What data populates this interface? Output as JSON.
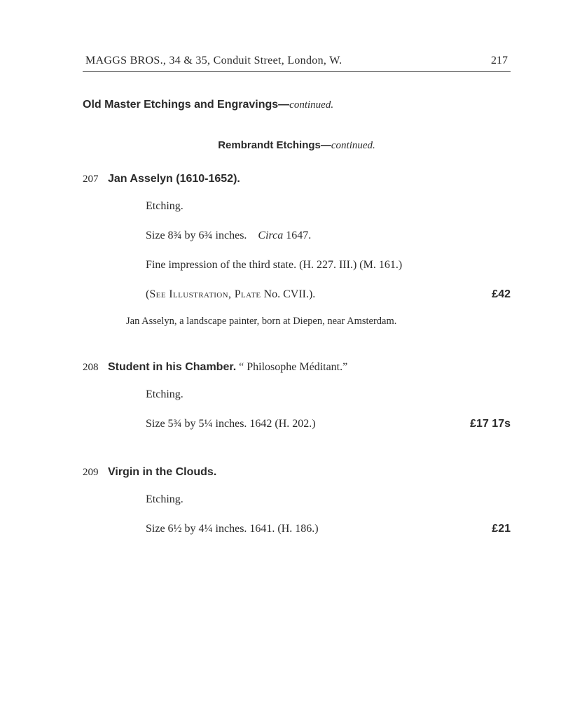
{
  "running_head": {
    "title": "MAGGS BROS., 34 & 35, Conduit Street, London, W.",
    "page_number": "217"
  },
  "section_heading": {
    "main": "Old Master Etchings and Engravings—",
    "cont": "continued."
  },
  "sub_heading": {
    "main": "Rembrandt Etchings—",
    "cont": "continued."
  },
  "entries": [
    {
      "lot": "207",
      "title": "Jan Asselyn (1610-1652).",
      "quoted": "",
      "lines": {
        "l1": "Etching.",
        "l2a": "Size 8¾ by 6¾ inches.",
        "l2b": "Circa",
        "l2c": " 1647.",
        "l3a": "Fine impression of the third state.",
        "l3b": "   (H. 227. III.)   (M. 161.)",
        "l4a": "(",
        "l4b": "See Illustration, Plate",
        "l4c": " No. CVII.).",
        "l4_price": "£42"
      },
      "note": "Jan Asselyn, a landscape painter, born at Diepen, near Amsterdam."
    },
    {
      "lot": "208",
      "title": "Student in his Chamber.",
      "quoted": "   “ Philosophe Méditant.”",
      "lines": {
        "l1": "Etching.",
        "l2": "Size 5¾ by 5¼ inches.   1642   (H. 202.)",
        "l2_price": "£17 17s"
      }
    },
    {
      "lot": "209",
      "title": "Virgin in the Clouds.",
      "quoted": "",
      "lines": {
        "l1": "Etching.",
        "l2": "Size 6½ by 4¼ inches.   1641.   (H. 186.)",
        "l2_price": "£21"
      }
    }
  ]
}
